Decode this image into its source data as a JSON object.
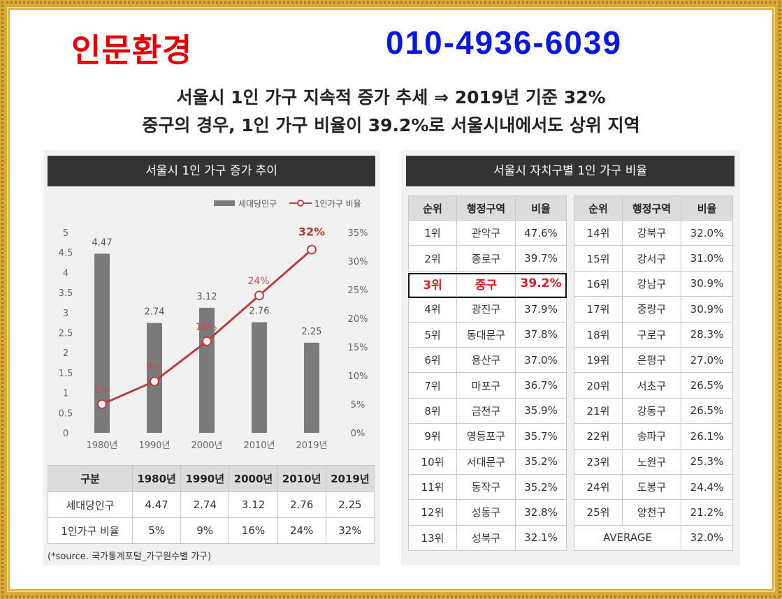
{
  "header": {
    "brand": "인문환경",
    "phone": "010-4936-6039",
    "headline1": "서울시 1인 가구 지속적 증가 추세 ⇒ 2019년 기준 32%",
    "headline2": "중구의 경우, 1인 가구 비율이 39.2%로 서울시내에서도 상위 지역"
  },
  "left_panel": {
    "title": "서울시 1인 가구 증가 추이",
    "table": {
      "headers": [
        "구분",
        "1980년",
        "1990년",
        "2000년",
        "2010년",
        "2019년"
      ],
      "rows": [
        [
          "세대당인구",
          "4.47",
          "2.74",
          "3.12",
          "2.76",
          "2.25"
        ],
        [
          "1인가구 비율",
          "5%",
          "9%",
          "16%",
          "24%",
          "32%"
        ]
      ]
    },
    "source": "(*source. 국가통계포털_가구원수별 가구)"
  },
  "right_panel": {
    "title": "서울시 자치구별 1인 가구 비율",
    "headers": [
      "순위",
      "행정구역",
      "비율"
    ],
    "left_rows": [
      [
        "1위",
        "관악구",
        "47.6%"
      ],
      [
        "2위",
        "종로구",
        "39.7%"
      ],
      [
        "3위",
        "중구",
        "39.2%"
      ],
      [
        "4위",
        "광진구",
        "37.9%"
      ],
      [
        "5위",
        "동대문구",
        "37.8%"
      ],
      [
        "6위",
        "용산구",
        "37.0%"
      ],
      [
        "7위",
        "마포구",
        "36.7%"
      ],
      [
        "8위",
        "금천구",
        "35.9%"
      ],
      [
        "9위",
        "영등포구",
        "35.7%"
      ],
      [
        "10위",
        "서대문구",
        "35.2%"
      ],
      [
        "11위",
        "동작구",
        "35.2%"
      ],
      [
        "12위",
        "성동구",
        "32.8%"
      ],
      [
        "13위",
        "성북구",
        "32.1%"
      ]
    ],
    "right_rows": [
      [
        "14위",
        "강북구",
        "32.0%"
      ],
      [
        "15위",
        "강서구",
        "31.0%"
      ],
      [
        "16위",
        "강남구",
        "30.9%"
      ],
      [
        "17위",
        "중랑구",
        "30.9%"
      ],
      [
        "18위",
        "구로구",
        "28.3%"
      ],
      [
        "19위",
        "은평구",
        "27.0%"
      ],
      [
        "20위",
        "서초구",
        "26.5%"
      ],
      [
        "21위",
        "강동구",
        "26.5%"
      ],
      [
        "22위",
        "송파구",
        "26.1%"
      ],
      [
        "23위",
        "노원구",
        "25.3%"
      ],
      [
        "24위",
        "도봉구",
        "24.4%"
      ],
      [
        "25위",
        "양천구",
        "21.2%"
      ]
    ],
    "average_label": "AVERAGE",
    "average_value": "32.0%",
    "highlight_color": "#d42020"
  },
  "chart_data": {
    "type": "bar",
    "categories": [
      "1980년",
      "1990년",
      "2000년",
      "2010년",
      "2019년"
    ],
    "series": [
      {
        "name": "세대당인구",
        "type": "bar",
        "values": [
          4.47,
          2.74,
          3.12,
          2.76,
          2.25
        ],
        "color": "#7a7a7a",
        "axis": "left"
      },
      {
        "name": "1인가구 비율",
        "type": "line",
        "values": [
          5,
          9,
          16,
          24,
          32
        ],
        "color": "#b84040",
        "axis": "right"
      }
    ],
    "ylim": [
      0,
      5
    ],
    "y_ticks": [
      "0",
      "0.5",
      "1",
      "1.5",
      "2",
      "2.5",
      "3",
      "3.5",
      "4",
      "4.5",
      "5"
    ],
    "y2lim": [
      0,
      35
    ],
    "y2_ticks": [
      "0%",
      "5%",
      "10%",
      "15%",
      "20%",
      "25%",
      "30%",
      "35%"
    ],
    "bar_labels": [
      "4.47",
      "2.74",
      "3.12",
      "2.76",
      "2.25"
    ],
    "line_labels": [
      "5%",
      "9%",
      "16%",
      "24%",
      "32%"
    ],
    "legend_position": "top-right",
    "grid": false
  }
}
